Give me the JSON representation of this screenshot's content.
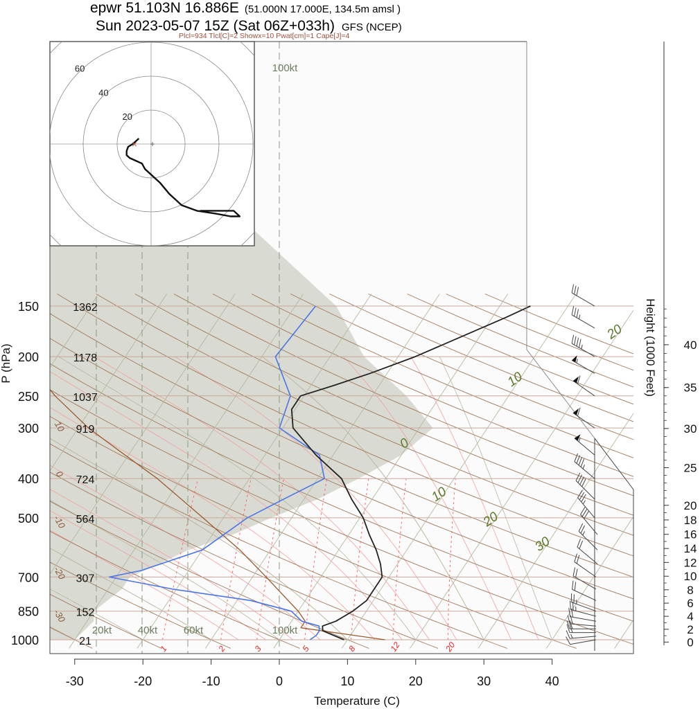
{
  "header": {
    "line1": "epwr 51.103N 16.886E",
    "line1_small": "(51.000N 17.000E, 134.5m amsl )",
    "line2": "Sun 2023-05-07 15Z (Sat 06Z+033h)",
    "line2_small": "GFS (NCEP)",
    "indices": "Plcl=934 Tlcl[C]=2 Showx=10 Pwat[cm]=1 Cape[J]=4"
  },
  "colors": {
    "isobar": "#c9a79a",
    "dry_adiabat": "#a0785a",
    "moist_adiabat": "#b6b79f",
    "mixing_ratio": "#ff5a5a",
    "temperature": "#222222",
    "dewpoint": "#4a74e8",
    "parcel": "#9a5a2e",
    "humidity_shade": "#d9dbd2",
    "isotherm_label": "#5c7a2a"
  },
  "chart_data": {
    "type": "skew-t",
    "xlabel": "Temperature (C)",
    "ylabel": "P (hPa)",
    "right_label": "Height (1000 Feet)",
    "xlim": [
      -34,
      47
    ],
    "pressure_range": [
      1000,
      150
    ],
    "x_ticks": [
      -30,
      -20,
      -10,
      0,
      10,
      20,
      30,
      40
    ],
    "pressure_levels": [
      {
        "p": 150,
        "label": "150",
        "height": "1362"
      },
      {
        "p": 200,
        "label": "200",
        "height": "1178"
      },
      {
        "p": 250,
        "label": "250",
        "height": "1037"
      },
      {
        "p": 300,
        "label": "300",
        "height": "919"
      },
      {
        "p": 400,
        "label": "400",
        "height": "724"
      },
      {
        "p": 500,
        "label": "500",
        "height": "564"
      },
      {
        "p": 700,
        "label": "700",
        "height": "307"
      },
      {
        "p": 850,
        "label": "850",
        "height": "152"
      },
      {
        "p": 1000,
        "label": "1000",
        "height": "21"
      }
    ],
    "height_ticks": [
      {
        "kft": 0,
        "label": "0"
      },
      {
        "kft": 2,
        "label": "2"
      },
      {
        "kft": 4,
        "label": "4"
      },
      {
        "kft": 6,
        "label": "6"
      },
      {
        "kft": 8,
        "label": "8"
      },
      {
        "kft": 10,
        "label": "10"
      },
      {
        "kft": 12,
        "label": "12"
      },
      {
        "kft": 14,
        "label": "14"
      },
      {
        "kft": 16,
        "label": "16"
      },
      {
        "kft": 18,
        "label": "18"
      },
      {
        "kft": 20,
        "label": "20"
      },
      {
        "kft": 25,
        "label": "25"
      },
      {
        "kft": 30,
        "label": "30"
      },
      {
        "kft": 35,
        "label": "35"
      },
      {
        "kft": 40,
        "label": "40"
      }
    ],
    "isotherm_labels": [
      {
        "t": 20,
        "p": 177,
        "label": "20"
      },
      {
        "t": 10,
        "p": 232,
        "label": "10"
      },
      {
        "t": 0,
        "p": 334,
        "label": "0"
      },
      {
        "t": 10,
        "p": 446,
        "label": "10"
      },
      {
        "t": 20,
        "p": 514,
        "label": "20"
      },
      {
        "t": 30,
        "p": 592,
        "label": "30"
      }
    ],
    "dry_adiabat_labels": [
      {
        "t": 10,
        "p": 300,
        "label": "10"
      },
      {
        "t": 0,
        "p": 393,
        "label": "0"
      },
      {
        "t": -10,
        "p": 516,
        "label": "-10"
      },
      {
        "t": -20,
        "p": 690,
        "label": "-20"
      },
      {
        "t": -30,
        "p": 880,
        "label": "-30"
      }
    ],
    "mixing_ratio_labels": [
      {
        "w": 1,
        "label": "1"
      },
      {
        "w": 2,
        "label": "2"
      },
      {
        "w": 3,
        "label": "3"
      },
      {
        "w": 5,
        "label": "5"
      },
      {
        "w": 8,
        "label": "8"
      },
      {
        "w": 12,
        "label": "12"
      },
      {
        "w": 20,
        "label": "20"
      }
    ],
    "isotach_labels": [
      {
        "label": "20kt"
      },
      {
        "label": "40kt"
      },
      {
        "label": "60kt"
      },
      {
        "label": "100kt"
      }
    ],
    "hodograph_rings": [
      {
        "kt": 20,
        "label": "20"
      },
      {
        "kt": 40,
        "label": "40"
      },
      {
        "kt": 60,
        "label": "60"
      }
    ],
    "series": [
      {
        "name": "temperature",
        "points": [
          [
            1000,
            9.5
          ],
          [
            975,
            7.5
          ],
          [
            950,
            5.5
          ],
          [
            925,
            5.0
          ],
          [
            900,
            6.5
          ],
          [
            850,
            8.0
          ],
          [
            800,
            9.0
          ],
          [
            700,
            9.0
          ],
          [
            650,
            7.5
          ],
          [
            600,
            5.5
          ],
          [
            550,
            3.0
          ],
          [
            500,
            0.5
          ],
          [
            450,
            -3.0
          ],
          [
            400,
            -6.5
          ],
          [
            350,
            -12.5
          ],
          [
            300,
            -18.5
          ],
          [
            270,
            -20.5
          ],
          [
            250,
            -20.5
          ],
          [
            235,
            -16.5
          ],
          [
            220,
            -12.5
          ],
          [
            200,
            -7.5
          ],
          [
            180,
            -3.0
          ],
          [
            160,
            2.0
          ],
          [
            150,
            4.5
          ]
        ]
      },
      {
        "name": "dewpoint",
        "points": [
          [
            1000,
            4.5
          ],
          [
            975,
            5.0
          ],
          [
            950,
            5.0
          ],
          [
            925,
            4.5
          ],
          [
            900,
            1.5
          ],
          [
            850,
            -1.0
          ],
          [
            800,
            -8.0
          ],
          [
            750,
            -20.5
          ],
          [
            700,
            -31.0
          ],
          [
            675,
            -27.0
          ],
          [
            600,
            -20.0
          ],
          [
            500,
            -16.5
          ],
          [
            450,
            -13.0
          ],
          [
            400,
            -9.0
          ],
          [
            350,
            -12.0
          ],
          [
            300,
            -20.5
          ],
          [
            250,
            -22.0
          ],
          [
            200,
            -28.0
          ],
          [
            150,
            -27.0
          ]
        ]
      },
      {
        "name": "parcel",
        "points": [
          [
            1000,
            15.5
          ],
          [
            934,
            2.0
          ],
          [
            900,
            2.0
          ],
          [
            850,
            0.0
          ],
          [
            800,
            -2.5
          ],
          [
            700,
            -8.0
          ],
          [
            600,
            -14.5
          ],
          [
            500,
            -23.0
          ],
          [
            400,
            -33.5
          ],
          [
            350,
            -40.5
          ],
          [
            300,
            -48.5
          ],
          [
            250,
            -56.5
          ],
          [
            200,
            -65.0
          ],
          [
            150,
            -73.5
          ]
        ]
      }
    ],
    "winds": [
      {
        "p": 1000,
        "dir": 260,
        "kt": 10
      },
      {
        "p": 980,
        "dir": 265,
        "kt": 15
      },
      {
        "p": 960,
        "dir": 270,
        "kt": 20
      },
      {
        "p": 940,
        "dir": 270,
        "kt": 20
      },
      {
        "p": 925,
        "dir": 275,
        "kt": 20
      },
      {
        "p": 900,
        "dir": 280,
        "kt": 20
      },
      {
        "p": 875,
        "dir": 285,
        "kt": 25
      },
      {
        "p": 850,
        "dir": 290,
        "kt": 25
      },
      {
        "p": 800,
        "dir": 295,
        "kt": 20
      },
      {
        "p": 750,
        "dir": 300,
        "kt": 20
      },
      {
        "p": 700,
        "dir": 305,
        "kt": 20
      },
      {
        "p": 650,
        "dir": 310,
        "kt": 20
      },
      {
        "p": 600,
        "dir": 315,
        "kt": 25
      },
      {
        "p": 550,
        "dir": 320,
        "kt": 30
      },
      {
        "p": 500,
        "dir": 320,
        "kt": 35
      },
      {
        "p": 450,
        "dir": 315,
        "kt": 40
      },
      {
        "p": 400,
        "dir": 310,
        "kt": 45
      },
      {
        "p": 350,
        "dir": 310,
        "kt": 55
      },
      {
        "p": 300,
        "dir": 305,
        "kt": 60
      },
      {
        "p": 250,
        "dir": 305,
        "kt": 60
      },
      {
        "p": 220,
        "dir": 300,
        "kt": 55
      },
      {
        "p": 200,
        "dir": 300,
        "kt": 45
      },
      {
        "p": 170,
        "dir": 300,
        "kt": 35
      },
      {
        "p": 150,
        "dir": 300,
        "kt": 30
      }
    ],
    "hodograph": [
      [
        -8,
        -4
      ],
      [
        -10,
        -2
      ],
      [
        -12,
        0
      ],
      [
        -15,
        2
      ],
      [
        -16,
        5
      ],
      [
        -16,
        8
      ],
      [
        -14,
        10
      ],
      [
        -10,
        12
      ],
      [
        -6,
        14
      ],
      [
        -4,
        18
      ],
      [
        0,
        22
      ],
      [
        6,
        28
      ],
      [
        12,
        36
      ],
      [
        20,
        44
      ],
      [
        30,
        48
      ],
      [
        42,
        50
      ],
      [
        52,
        52
      ],
      [
        58,
        52
      ],
      [
        54,
        48
      ],
      [
        42,
        48
      ],
      [
        32,
        48
      ]
    ]
  }
}
